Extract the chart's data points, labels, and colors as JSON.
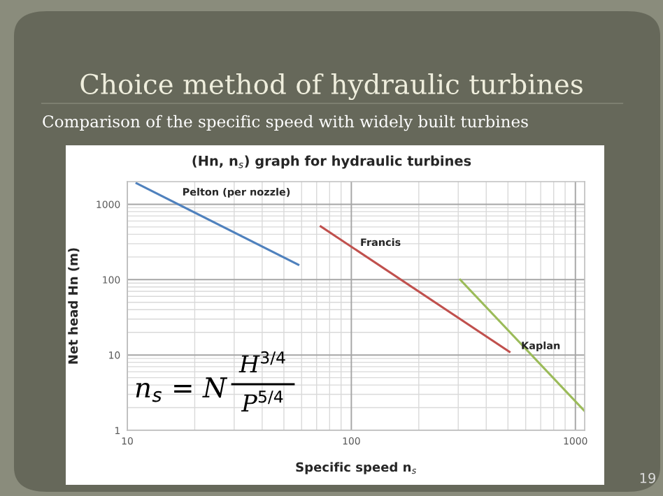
{
  "chart_data": {
    "type": "line",
    "title": "Choice method of hydraulic turbines",
    "subtitle": "Comparison of the specific speed with widely built turbines",
    "xlabel": "Specific speed n$_{s}$",
    "ylabel": "Net head Hn (m)",
    "annotations": [
      "(Hn, n$_{s}$) graph for hydraulic turbines",
      "n$_{s}$ = N",
      "H$^{3/4}$",
      "P$^{5/4}$",
      "19"
    ],
    "series": [
      {
        "name": "Pelton (per nozzle)",
        "color": "#4f81bd",
        "x": [
          11,
          58
        ],
        "values": [
          1900,
          158
        ]
      },
      {
        "name": "Francis",
        "color": "#c0504d",
        "x": [
          73,
          508
        ],
        "values": [
          510,
          11
        ]
      },
      {
        "name": "Kaplan",
        "color": "#9bbb59",
        "x": [
          306,
          1100
        ],
        "values": [
          100,
          1.8
        ]
      }
    ],
    "log": "xy",
    "xlim": [
      10,
      1100
    ],
    "ylim": [
      1,
      2000
    ],
    "xticks": [
      10,
      100,
      1000
    ],
    "yticks": [
      1,
      10,
      100,
      1000
    ],
    "grid": true,
    "legend": false,
    "marker": "none",
    "line_style": "solid"
  }
}
